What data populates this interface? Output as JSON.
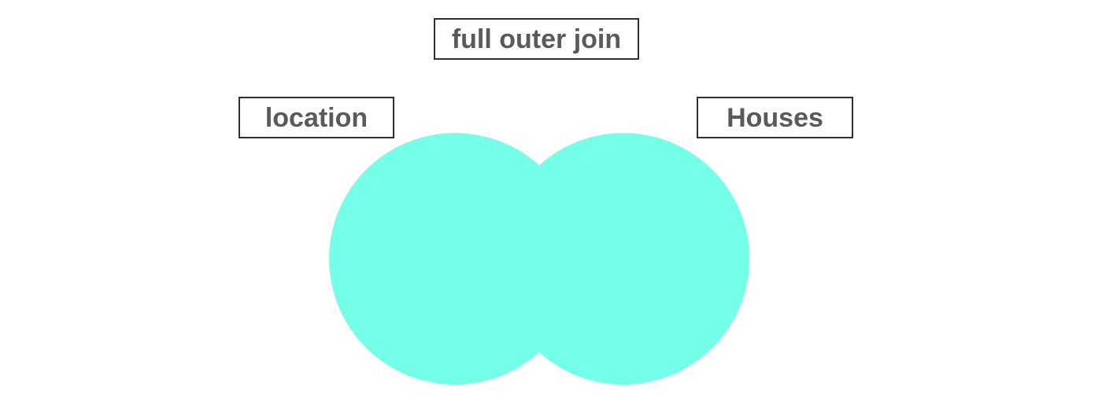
{
  "title": "full outer join",
  "left_set": {
    "label": "location"
  },
  "right_set": {
    "label": "Houses"
  },
  "colors": {
    "fill": "#76FFE8",
    "border": "#2f2f2f",
    "text": "#5a5a5a"
  }
}
